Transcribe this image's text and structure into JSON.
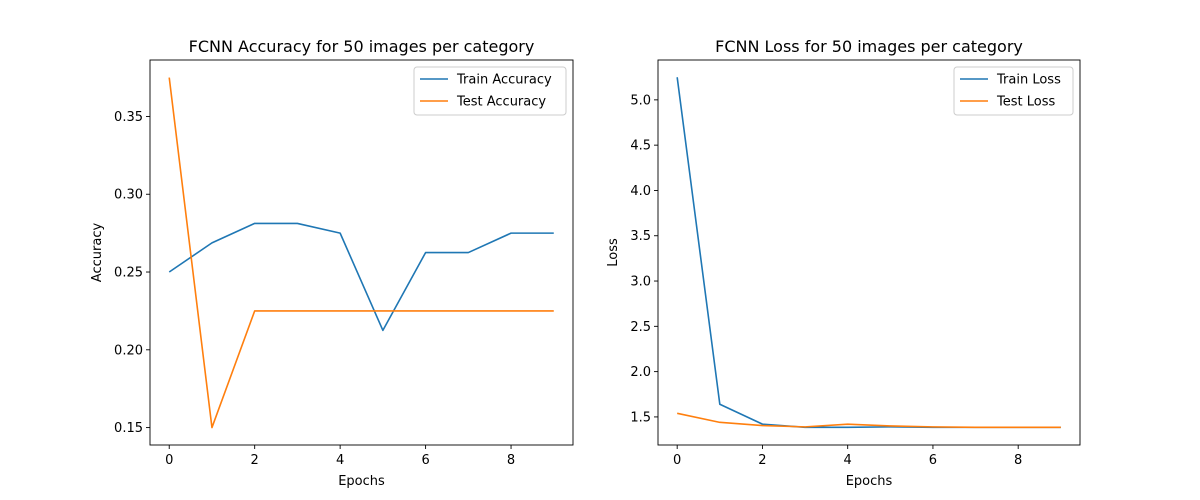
{
  "chart_data": [
    {
      "type": "line",
      "title": "FCNN Accuracy for 50 images per category",
      "xlabel": "Epochs",
      "ylabel": "Accuracy",
      "x": [
        0,
        1,
        2,
        3,
        4,
        5,
        6,
        7,
        8,
        9
      ],
      "xlim": [
        -0.45,
        9.45
      ],
      "ylim": [
        0.1388,
        0.3863
      ],
      "xticks": [
        0,
        2,
        4,
        6,
        8
      ],
      "yticks": [
        0.15,
        0.2,
        0.25,
        0.3,
        0.35
      ],
      "ytick_labels": [
        "0.15",
        "0.20",
        "0.25",
        "0.30",
        "0.35"
      ],
      "legend_position": "upper-right",
      "grid": false,
      "series": [
        {
          "name": "Train Accuracy",
          "color": "#1f77b4",
          "values": [
            0.25,
            0.26875,
            0.28125,
            0.28125,
            0.275,
            0.2125,
            0.2625,
            0.2625,
            0.275,
            0.275
          ]
        },
        {
          "name": "Test Accuracy",
          "color": "#ff7f0e",
          "values": [
            0.375,
            0.15,
            0.225,
            0.225,
            0.225,
            0.225,
            0.225,
            0.225,
            0.225,
            0.225
          ]
        }
      ]
    },
    {
      "type": "line",
      "title": "FCNN Loss for 50 images per category",
      "xlabel": "Epochs",
      "ylabel": "Loss",
      "x": [
        0,
        1,
        2,
        3,
        4,
        5,
        6,
        7,
        8,
        9
      ],
      "xlim": [
        -0.45,
        9.45
      ],
      "ylim": [
        1.19,
        5.44
      ],
      "xticks": [
        0,
        2,
        4,
        6,
        8
      ],
      "yticks": [
        1.5,
        2.0,
        2.5,
        3.0,
        3.5,
        4.0,
        4.5,
        5.0
      ],
      "ytick_labels": [
        "1.5",
        "2.0",
        "2.5",
        "3.0",
        "3.5",
        "4.0",
        "4.5",
        "5.0"
      ],
      "legend_position": "upper-right",
      "grid": false,
      "series": [
        {
          "name": "Train Loss",
          "color": "#1f77b4",
          "values": [
            5.25,
            1.64,
            1.42,
            1.385,
            1.385,
            1.39,
            1.385,
            1.385,
            1.385,
            1.385
          ]
        },
        {
          "name": "Test Loss",
          "color": "#ff7f0e",
          "values": [
            1.54,
            1.44,
            1.405,
            1.39,
            1.42,
            1.4,
            1.39,
            1.385,
            1.385,
            1.385
          ]
        }
      ]
    }
  ]
}
